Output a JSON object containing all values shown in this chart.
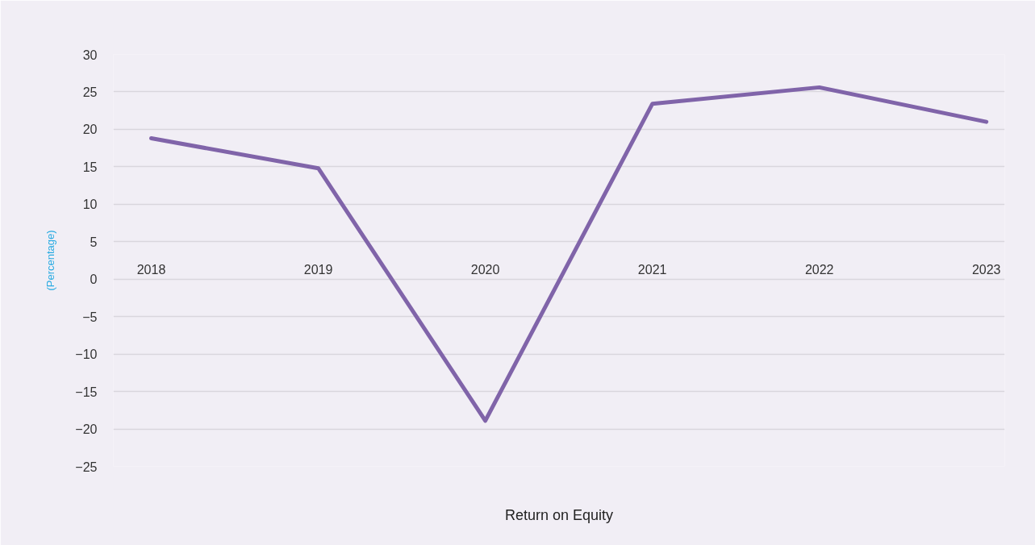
{
  "chart_data": {
    "type": "line",
    "xlabel": "Return on Equity",
    "ylabel": "(Percentage)",
    "categories": [
      "2018",
      "2019",
      "2020",
      "2021",
      "2022",
      "2023"
    ],
    "series": [
      {
        "color": "#8064a9",
        "values": [
          18.8,
          14.8,
          -18.9,
          23.4,
          25.6,
          21.0
        ]
      }
    ],
    "ylim": [
      -25,
      30
    ],
    "yticks": [
      -25,
      -20,
      -15,
      -10,
      -5,
      0,
      5,
      10,
      15,
      20,
      25,
      30
    ],
    "grid": "y"
  }
}
